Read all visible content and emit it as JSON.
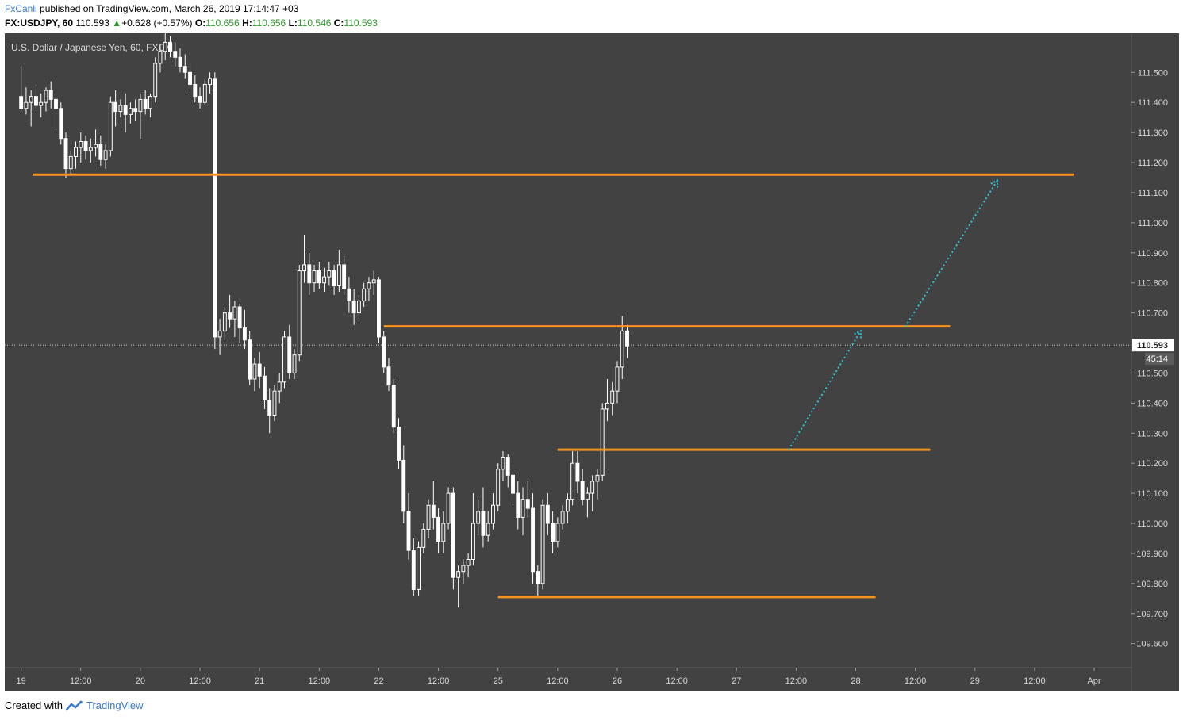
{
  "header": {
    "author": "FxCanli",
    "published": "published on TradingView.com, March 26, 2019 17:14:47 +03"
  },
  "ohlc": {
    "symbol": "FX:USDJPY, 60",
    "last": "110.593",
    "up_arrow": "▲",
    "change": "+0.628 (+0.57%)",
    "o_label": "O:",
    "o": "110.656",
    "h_label": "H:",
    "h": "110.656",
    "l_label": "L:",
    "l": "110.546",
    "c_label": "C:",
    "c": "110.593"
  },
  "chart_title": "U.S. Dollar / Japanese Yen, 60, FXCM",
  "price_label": "110.593",
  "countdown": "45:14",
  "footer": {
    "created_with": "Created with",
    "brand": "TradingView"
  },
  "colors": {
    "background": "#424242",
    "candle": "#ffffff",
    "level": "#f7941d",
    "projection": "#2ec4d4",
    "last_price_bg": "#ffffff"
  },
  "chart_data": {
    "type": "candlestick",
    "title": "U.S. Dollar / Japanese Yen, 60, FXCM",
    "ylim": [
      109.52,
      111.63
    ],
    "y_ticks": [
      111.5,
      111.4,
      111.3,
      111.2,
      111.1,
      111.0,
      110.9,
      110.8,
      110.7,
      110.5,
      110.4,
      110.3,
      110.2,
      110.1,
      110.0,
      109.9,
      109.8,
      109.7,
      109.6
    ],
    "y_tick_labels": [
      "111.500",
      "111.400",
      "111.300",
      "111.200",
      "111.100",
      "111.000",
      "110.900",
      "110.800",
      "110.700",
      "110.500",
      "110.400",
      "110.300",
      "110.200",
      "110.100",
      "110.000",
      "109.900",
      "109.800",
      "109.700",
      "109.600"
    ],
    "x_tick_labels": [
      "19",
      "12:00",
      "20",
      "12:00",
      "21",
      "12:00",
      "22",
      "12:00",
      "25",
      "12:00",
      "26",
      "12:00",
      "27",
      "12:00",
      "28",
      "12:00",
      "29",
      "12:00",
      "Apr"
    ],
    "x_tick_bars": [
      0,
      12,
      24,
      36,
      48,
      60,
      72,
      84,
      96,
      108,
      120,
      132,
      144,
      156,
      168,
      180,
      192,
      204,
      216
    ],
    "x_range_bars": [
      -3.3,
      223.5
    ],
    "last_price": 110.593,
    "levels": [
      {
        "price": 111.16,
        "x_start_bar": 2.3,
        "x_end_bar": 212.0
      },
      {
        "price": 110.655,
        "x_start_bar": 73.0,
        "x_end_bar": 187.0
      },
      {
        "price": 110.245,
        "x_start_bar": 108.0,
        "x_end_bar": 183.0
      },
      {
        "price": 109.755,
        "x_start_bar": 96.0,
        "x_end_bar": 172.0
      }
    ],
    "projections": [
      {
        "from_bar": 154.5,
        "from_price": 110.245,
        "to_bar": 169.0,
        "to_price": 110.64
      },
      {
        "from_bar": 178.0,
        "from_price": 110.655,
        "to_bar": 196.5,
        "to_price": 111.14
      }
    ],
    "ohlc": [
      [
        111.42,
        111.52,
        111.37,
        111.38
      ],
      [
        111.38,
        111.45,
        111.36,
        111.4
      ],
      [
        111.4,
        111.44,
        111.32,
        111.42
      ],
      [
        111.42,
        111.46,
        111.38,
        111.39
      ],
      [
        111.39,
        111.43,
        111.35,
        111.4
      ],
      [
        111.4,
        111.45,
        111.37,
        111.44
      ],
      [
        111.44,
        111.47,
        111.38,
        111.41
      ],
      [
        111.41,
        111.42,
        111.3,
        111.38
      ],
      [
        111.38,
        111.4,
        111.26,
        111.28
      ],
      [
        111.28,
        111.3,
        111.15,
        111.18
      ],
      [
        111.18,
        111.24,
        111.16,
        111.22
      ],
      [
        111.22,
        111.27,
        111.18,
        111.25
      ],
      [
        111.25,
        111.3,
        111.2,
        111.27
      ],
      [
        111.27,
        111.29,
        111.21,
        111.24
      ],
      [
        111.24,
        111.28,
        111.2,
        111.25
      ],
      [
        111.25,
        111.31,
        111.22,
        111.26
      ],
      [
        111.26,
        111.29,
        111.19,
        111.21
      ],
      [
        111.21,
        111.26,
        111.18,
        111.24
      ],
      [
        111.24,
        111.42,
        111.22,
        111.4
      ],
      [
        111.4,
        111.44,
        111.32,
        111.37
      ],
      [
        111.37,
        111.41,
        111.35,
        111.39
      ],
      [
        111.39,
        111.43,
        111.3,
        111.36
      ],
      [
        111.36,
        111.4,
        111.33,
        111.38
      ],
      [
        111.38,
        111.41,
        111.34,
        111.37
      ],
      [
        111.37,
        111.43,
        111.28,
        111.41
      ],
      [
        111.41,
        111.44,
        111.36,
        111.38
      ],
      [
        111.38,
        111.43,
        111.35,
        111.42
      ],
      [
        111.42,
        111.55,
        111.4,
        111.53
      ],
      [
        111.53,
        111.59,
        111.5,
        111.57
      ],
      [
        111.57,
        111.63,
        111.54,
        111.6
      ],
      [
        111.6,
        111.62,
        111.55,
        111.57
      ],
      [
        111.57,
        111.6,
        111.52,
        111.55
      ],
      [
        111.55,
        111.58,
        111.5,
        111.52
      ],
      [
        111.52,
        111.56,
        111.48,
        111.5
      ],
      [
        111.5,
        111.53,
        111.44,
        111.46
      ],
      [
        111.46,
        111.49,
        111.4,
        111.42
      ],
      [
        111.42,
        111.45,
        111.38,
        111.4
      ],
      [
        111.4,
        111.48,
        111.39,
        111.46
      ],
      [
        111.46,
        111.5,
        111.43,
        111.48
      ],
      [
        111.48,
        111.5,
        110.58,
        110.62
      ],
      [
        110.62,
        110.68,
        110.56,
        110.64
      ],
      [
        110.64,
        110.72,
        110.61,
        110.7
      ],
      [
        110.7,
        110.76,
        110.65,
        110.68
      ],
      [
        110.68,
        110.74,
        110.62,
        110.72
      ],
      [
        110.72,
        110.73,
        110.6,
        110.65
      ],
      [
        110.65,
        110.71,
        110.58,
        110.61
      ],
      [
        110.61,
        110.64,
        110.46,
        110.48
      ],
      [
        110.48,
        110.55,
        110.44,
        110.53
      ],
      [
        110.53,
        110.57,
        110.45,
        110.49
      ],
      [
        110.49,
        110.52,
        110.38,
        110.41
      ],
      [
        110.41,
        110.45,
        110.3,
        110.36
      ],
      [
        110.36,
        110.46,
        110.34,
        110.44
      ],
      [
        110.44,
        110.5,
        110.4,
        110.47
      ],
      [
        110.47,
        110.64,
        110.45,
        110.62
      ],
      [
        110.62,
        110.66,
        110.48,
        110.5
      ],
      [
        110.5,
        110.58,
        110.48,
        110.56
      ],
      [
        110.56,
        110.86,
        110.54,
        110.84
      ],
      [
        110.84,
        110.96,
        110.8,
        110.86
      ],
      [
        110.86,
        110.9,
        110.76,
        110.8
      ],
      [
        110.8,
        110.86,
        110.77,
        110.84
      ],
      [
        110.84,
        110.87,
        110.78,
        110.8
      ],
      [
        110.8,
        110.85,
        110.77,
        110.82
      ],
      [
        110.82,
        110.87,
        110.79,
        110.84
      ],
      [
        110.84,
        110.86,
        110.76,
        110.79
      ],
      [
        110.79,
        110.91,
        110.77,
        110.86
      ],
      [
        110.86,
        110.89,
        110.76,
        110.78
      ],
      [
        110.78,
        110.82,
        110.7,
        110.74
      ],
      [
        110.74,
        110.78,
        110.66,
        110.7
      ],
      [
        110.7,
        110.76,
        110.68,
        110.74
      ],
      [
        110.74,
        110.8,
        110.72,
        110.78
      ],
      [
        110.78,
        110.82,
        110.74,
        110.8
      ],
      [
        110.8,
        110.84,
        110.76,
        110.81
      ],
      [
        110.81,
        110.82,
        110.6,
        110.62
      ],
      [
        110.62,
        110.64,
        110.5,
        110.52
      ],
      [
        110.52,
        110.55,
        110.44,
        110.46
      ],
      [
        110.46,
        110.48,
        110.3,
        110.32
      ],
      [
        110.32,
        110.35,
        110.18,
        110.21
      ],
      [
        110.21,
        110.26,
        110.0,
        110.04
      ],
      [
        110.04,
        110.1,
        109.88,
        109.91
      ],
      [
        109.91,
        109.95,
        109.76,
        109.78
      ],
      [
        109.78,
        109.94,
        109.76,
        109.92
      ],
      [
        109.92,
        110.0,
        109.9,
        109.98
      ],
      [
        109.98,
        110.08,
        109.95,
        110.06
      ],
      [
        110.06,
        110.14,
        109.98,
        110.02
      ],
      [
        110.02,
        110.05,
        109.9,
        109.94
      ],
      [
        109.94,
        110.04,
        109.9,
        110.0
      ],
      [
        110.0,
        110.12,
        109.98,
        110.1
      ],
      [
        110.1,
        110.12,
        109.78,
        109.82
      ],
      [
        109.82,
        109.86,
        109.72,
        109.84
      ],
      [
        109.84,
        109.88,
        109.8,
        109.86
      ],
      [
        109.86,
        109.9,
        109.82,
        109.88
      ],
      [
        109.88,
        110.1,
        109.86,
        110.0
      ],
      [
        110.0,
        110.08,
        109.96,
        110.04
      ],
      [
        110.04,
        110.12,
        109.92,
        109.96
      ],
      [
        109.96,
        110.04,
        109.94,
        110.0
      ],
      [
        110.0,
        110.1,
        109.98,
        110.06
      ],
      [
        110.06,
        110.2,
        110.04,
        110.18
      ],
      [
        110.18,
        110.24,
        110.14,
        110.22
      ],
      [
        110.22,
        110.23,
        110.12,
        110.16
      ],
      [
        110.16,
        110.2,
        110.06,
        110.1
      ],
      [
        110.1,
        110.14,
        109.98,
        110.02
      ],
      [
        110.02,
        110.12,
        109.96,
        110.08
      ],
      [
        110.08,
        110.14,
        110.02,
        110.05
      ],
      [
        110.05,
        110.1,
        109.8,
        109.84
      ],
      [
        109.84,
        109.86,
        109.76,
        109.8
      ],
      [
        109.8,
        110.08,
        109.78,
        110.06
      ],
      [
        110.06,
        110.1,
        109.96,
        110.0
      ],
      [
        110.0,
        110.04,
        109.9,
        109.94
      ],
      [
        109.94,
        110.02,
        109.92,
        110.0
      ],
      [
        110.0,
        110.06,
        109.98,
        110.04
      ],
      [
        110.04,
        110.1,
        110.0,
        110.08
      ],
      [
        110.08,
        110.24,
        110.06,
        110.2
      ],
      [
        110.2,
        110.24,
        110.1,
        110.14
      ],
      [
        110.14,
        110.18,
        110.06,
        110.08
      ],
      [
        110.08,
        110.12,
        110.02,
        110.1
      ],
      [
        110.1,
        110.16,
        110.04,
        110.14
      ],
      [
        110.14,
        110.18,
        110.08,
        110.16
      ],
      [
        110.16,
        110.4,
        110.14,
        110.38
      ],
      [
        110.38,
        110.48,
        110.34,
        110.4
      ],
      [
        110.4,
        110.47,
        110.36,
        110.44
      ],
      [
        110.44,
        110.54,
        110.4,
        110.52
      ],
      [
        110.52,
        110.69,
        110.48,
        110.64
      ],
      [
        110.64,
        110.66,
        110.55,
        110.59
      ]
    ]
  }
}
